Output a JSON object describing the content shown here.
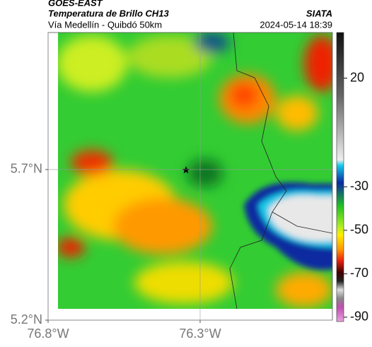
{
  "header": {
    "source": "GOES-EAST",
    "title": "Temperatura de Brillo CH13",
    "agency": "SIATA",
    "subtitle": "Vía Medellín - Quibdó 50km",
    "timestamp": "2024-05-14 18:39"
  },
  "map": {
    "xlim": [
      -76.8,
      -75.865
    ],
    "ylim": [
      5.2,
      6.155
    ],
    "xticks": [
      {
        "value": -76.8,
        "label": "76.8°W"
      },
      {
        "value": -76.3,
        "label": "76.3°W"
      }
    ],
    "yticks": [
      {
        "value": 5.2,
        "label": "5.2°N"
      },
      {
        "value": 5.7,
        "label": "5.7°N"
      }
    ],
    "grid": true
  },
  "colorbar": {
    "lim": [
      -92,
      41
    ],
    "ticks": [
      20,
      -30,
      -50,
      -70,
      -90
    ]
  }
}
